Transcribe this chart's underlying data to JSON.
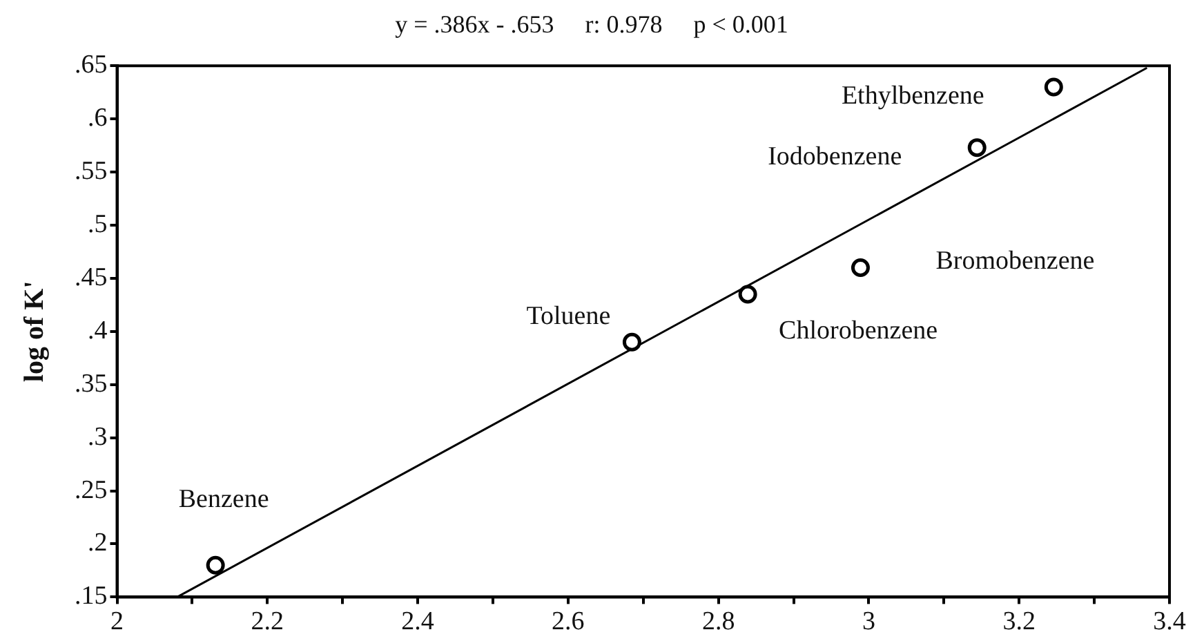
{
  "chart_data": {
    "type": "scatter",
    "title": "y = .386x - .653     r: 0.978     p < 0.001",
    "ylabel": "log of K'",
    "xlim": [
      2,
      3.4
    ],
    "ylim": [
      0.15,
      0.65
    ],
    "xticks": [
      2,
      {
        "value": 2.1,
        "label": null
      },
      2.2,
      {
        "value": 2.3,
        "label": null
      },
      2.4,
      {
        "value": 2.5,
        "label": null
      },
      2.6,
      {
        "value": 2.7,
        "label": null
      },
      2.8,
      {
        "value": 2.9,
        "label": null
      },
      3,
      {
        "value": 3.1,
        "label": null
      },
      3.2,
      {
        "value": 3.3,
        "label": null
      },
      3.4
    ],
    "yticks": [
      {
        "value": 0.15,
        "label": ".15"
      },
      {
        "value": 0.2,
        "label": ".2"
      },
      {
        "value": 0.25,
        "label": ".25"
      },
      {
        "value": 0.3,
        "label": ".3"
      },
      {
        "value": 0.35,
        "label": ".35"
      },
      {
        "value": 0.4,
        "label": ".4"
      },
      {
        "value": 0.45,
        "label": ".45"
      },
      {
        "value": 0.5,
        "label": ".5"
      },
      {
        "value": 0.55,
        "label": ".55"
      },
      {
        "value": 0.6,
        "label": ".6"
      },
      {
        "value": 0.65,
        "label": ".65"
      }
    ],
    "grid": false,
    "legend": false,
    "marker": "circle",
    "series": [
      {
        "type": "scatter",
        "color": "#000000",
        "x": [
          2.131,
          2.685,
          2.839,
          2.989,
          3.144,
          3.246
        ],
        "values": [
          0.18,
          0.39,
          0.435,
          0.46,
          0.573,
          0.63
        ]
      },
      {
        "type": "line",
        "color": "#000000",
        "marker": "none",
        "x": [
          2.08,
          3.37
        ],
        "values": [
          0.15,
          0.648
        ]
      }
    ],
    "annotations": [
      {
        "text": "Benzene",
        "x": 2.131,
        "y": 0.18
      },
      {
        "text": "Toluene",
        "x": 2.685,
        "y": 0.39
      },
      {
        "text": "Chlorobenzene",
        "x": 2.839,
        "y": 0.435
      },
      {
        "text": "Bromobenzene",
        "x": 2.989,
        "y": 0.46
      },
      {
        "text": "Iodobenzene",
        "x": 3.144,
        "y": 0.573
      },
      {
        "text": "Ethylbenzene",
        "x": 3.246,
        "y": 0.63
      }
    ]
  }
}
